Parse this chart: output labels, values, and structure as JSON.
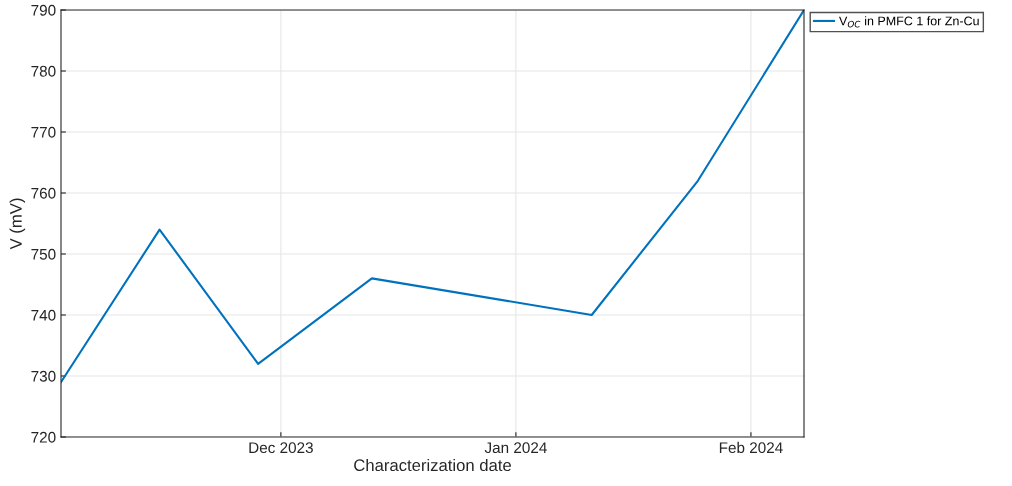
{
  "chart_data": {
    "type": "line",
    "xlabel": "Characterization date",
    "ylabel": "V (mV)",
    "x": [
      "2023-11-02",
      "2023-11-15",
      "2023-11-28",
      "2023-12-13",
      "2024-01-11",
      "2024-01-25",
      "2024-02-08"
    ],
    "series": [
      {
        "name": "V$_{OC}$ in PMFC 1 for Zn-Cu",
        "color": "#0072bd",
        "values": [
          729,
          754,
          732,
          746,
          740,
          762,
          790
        ]
      }
    ],
    "xlim": [
      "2023-11-02",
      "2024-02-08"
    ],
    "xticks": [
      {
        "value": "2023-12-01",
        "label": "Dec 2023"
      },
      {
        "value": "2024-01-01",
        "label": "Jan 2024"
      },
      {
        "value": "2024-02-01",
        "label": "Feb 2024"
      }
    ],
    "ylim": [
      720,
      790
    ],
    "yticks": [
      720,
      730,
      740,
      750,
      760,
      770,
      780,
      790
    ],
    "grid": true,
    "legend": "top right",
    "marker": "none",
    "line_style": "solid"
  }
}
